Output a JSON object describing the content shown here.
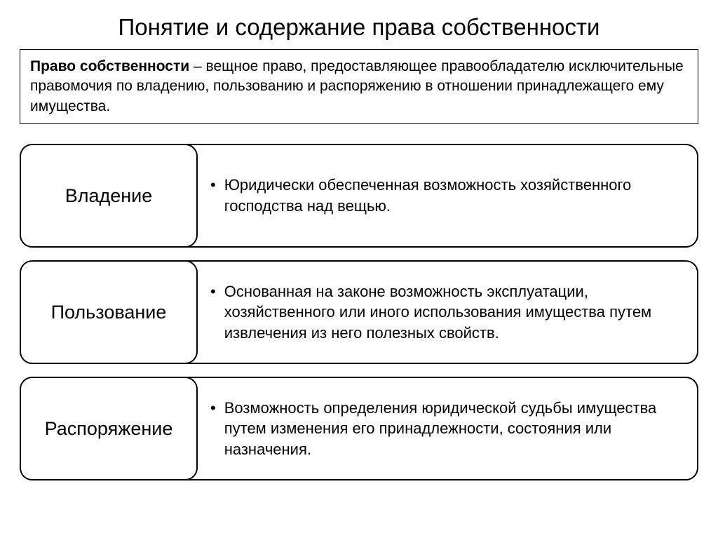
{
  "title": "Понятие и содержание права собственности",
  "definition": {
    "term": "Право собственности",
    "text": " – вещное право, предоставляющее правообладателю исключительные правомочия по владению, пользованию и распоряжению в отношении принадлежащего ему имущества."
  },
  "rows": [
    {
      "label": "Владение",
      "description": "Юридически обеспеченная возможность хозяйственного господства над вещью."
    },
    {
      "label": "Пользование",
      "description": "Основанная на законе возможность эксплуатации, хозяйственного или иного использования имущества путем извлечения из него полезных свойств."
    },
    {
      "label": "Распоряжение",
      "description": "Возможность определения юридической судьбы имущества путем изменения его принадлежности, состояния или назначения."
    }
  ],
  "styling": {
    "background_color": "#ffffff",
    "text_color": "#000000",
    "border_color": "#000000",
    "border_width": 2,
    "border_radius": 18,
    "title_fontsize": 33,
    "definition_fontsize": 21,
    "label_fontsize": 27,
    "description_fontsize": 22,
    "label_column_width": 254
  }
}
